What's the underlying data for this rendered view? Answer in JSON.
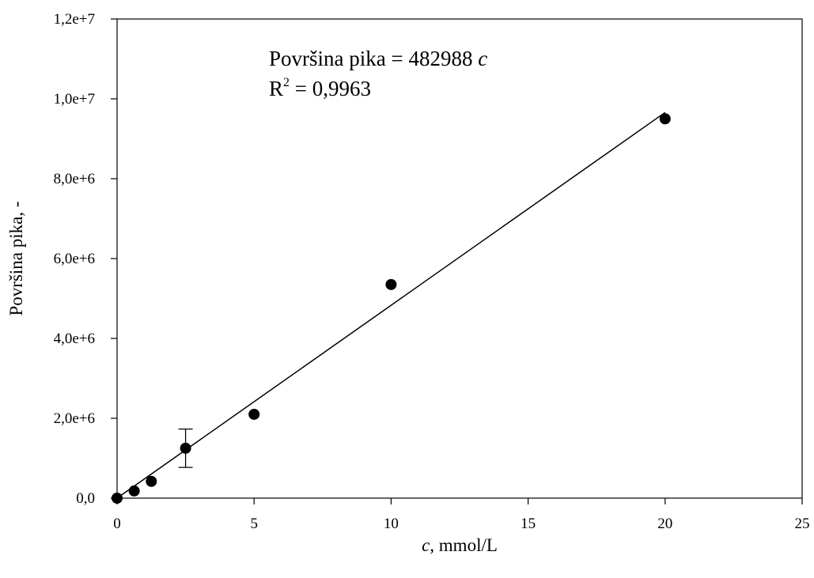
{
  "chart_data": {
    "type": "scatter",
    "xlabel": "c, mmol/L",
    "xlabel_italic_part": "c,",
    "xlabel_rest": " mmol/L",
    "ylabel": "Površina pika, -",
    "xlim": [
      0,
      25
    ],
    "ylim": [
      0,
      12000000
    ],
    "x_ticks": [
      0,
      5,
      10,
      15,
      20,
      25
    ],
    "x_tick_labels": [
      "0",
      "5",
      "10",
      "15",
      "20",
      "25"
    ],
    "y_ticks": [
      0,
      2000000,
      4000000,
      6000000,
      8000000,
      10000000,
      12000000
    ],
    "y_tick_labels": [
      "0,0",
      "2,0e+6",
      "4,0e+6",
      "6,0e+6",
      "8,0e+6",
      "1,0e+7",
      "1,2e+7"
    ],
    "grid": false,
    "points": [
      {
        "x": 0,
        "y": 0
      },
      {
        "x": 0.625,
        "y": 180000
      },
      {
        "x": 1.25,
        "y": 420000
      },
      {
        "x": 2.5,
        "y": 1250000,
        "error": 480000
      },
      {
        "x": 5,
        "y": 2100000
      },
      {
        "x": 10,
        "y": 5350000
      },
      {
        "x": 20,
        "y": 9500000
      }
    ],
    "fit_line": {
      "slope": 482988,
      "intercept": 0,
      "x_range": [
        0,
        20
      ]
    },
    "annotations": {
      "equation_prefix": "Površina pika = 482988 ",
      "equation_var": "c",
      "r2_prefix": "R",
      "r2_sup": "2",
      "r2_value": " = 0,9963"
    },
    "colors": {
      "marker": "#000000",
      "line": "#000000",
      "axis": "#000000"
    }
  }
}
